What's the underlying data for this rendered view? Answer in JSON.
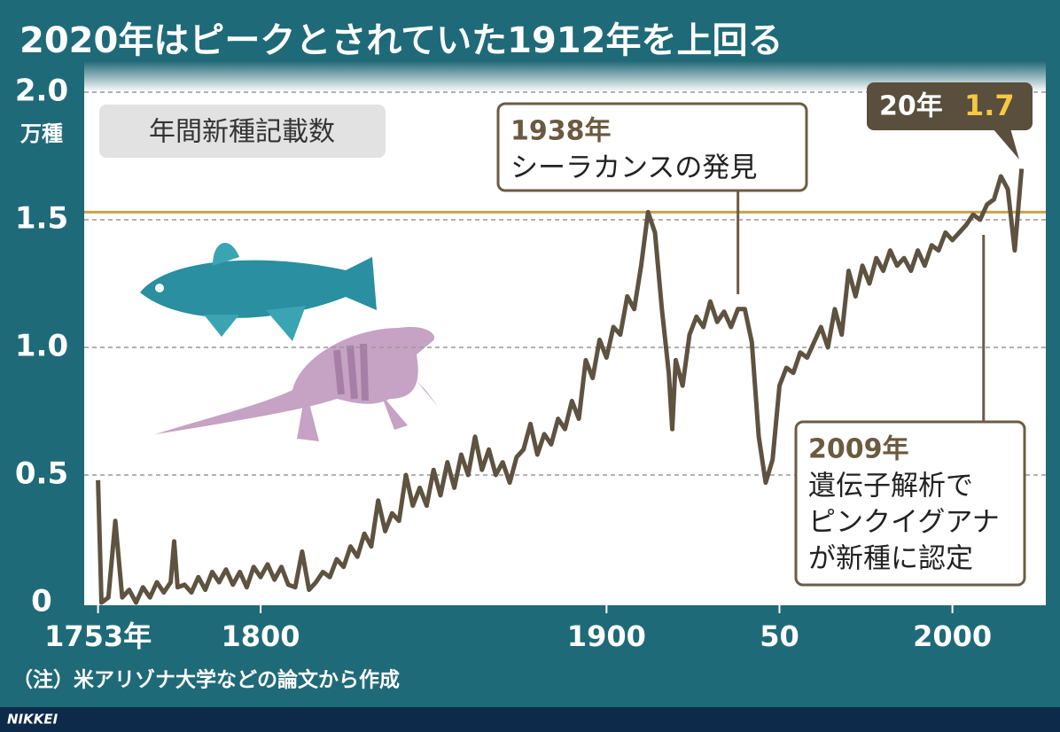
{
  "chart_data": {
    "type": "line",
    "title": "2020年はピークとされていた1912年を上回る",
    "y_unit": "万種",
    "note": "（注）米アリゾナ大学などの論文から作成",
    "source": "NIKKEI",
    "xlim": [
      1749,
      2027
    ],
    "ylim": [
      0,
      2
    ],
    "xticks": [
      {
        "value": 1753,
        "label": "1753年"
      },
      1800,
      1900,
      {
        "value": 1950,
        "label": "50"
      },
      2000
    ],
    "yticks": [
      0,
      0.5,
      {
        "value": 1,
        "label": "1.0"
      },
      1.5,
      {
        "value": 2,
        "label": "2.0"
      }
    ],
    "grid": true,
    "reference_line": {
      "value": 1.53,
      "color": "#c9a24a"
    },
    "series": [
      {
        "name": "年間新種記載数",
        "color": "#5e5240",
        "x": [
          1753,
          1754,
          1756,
          1758,
          1760,
          1762,
          1764,
          1766,
          1768,
          1770,
          1772,
          1774,
          1775,
          1776,
          1778,
          1780,
          1782,
          1784,
          1786,
          1788,
          1790,
          1792,
          1794,
          1796,
          1798,
          1800,
          1802,
          1804,
          1806,
          1808,
          1810,
          1812,
          1814,
          1816,
          1818,
          1820,
          1822,
          1824,
          1826,
          1828,
          1830,
          1832,
          1834,
          1836,
          1838,
          1840,
          1842,
          1844,
          1846,
          1848,
          1850,
          1852,
          1854,
          1856,
          1858,
          1860,
          1862,
          1864,
          1866,
          1868,
          1870,
          1872,
          1874,
          1876,
          1878,
          1880,
          1882,
          1884,
          1886,
          1888,
          1890,
          1892,
          1894,
          1896,
          1898,
          1900,
          1902,
          1904,
          1906,
          1908,
          1910,
          1912,
          1914,
          1916,
          1918,
          1919,
          1920,
          1922,
          1924,
          1926,
          1928,
          1930,
          1932,
          1934,
          1936,
          1938,
          1940,
          1942,
          1944,
          1946,
          1948,
          1950,
          1952,
          1954,
          1956,
          1958,
          1960,
          1962,
          1964,
          1966,
          1968,
          1970,
          1972,
          1974,
          1976,
          1978,
          1980,
          1982,
          1984,
          1986,
          1988,
          1990,
          1992,
          1994,
          1996,
          1998,
          2000,
          2002,
          2004,
          2006,
          2008,
          2010,
          2012,
          2014,
          2016,
          2018,
          2020
        ],
        "values": [
          0.48,
          0.0,
          0.02,
          0.32,
          0.02,
          0.05,
          0.0,
          0.06,
          0.02,
          0.08,
          0.04,
          0.08,
          0.24,
          0.06,
          0.07,
          0.04,
          0.1,
          0.05,
          0.12,
          0.08,
          0.13,
          0.07,
          0.12,
          0.06,
          0.14,
          0.1,
          0.15,
          0.09,
          0.14,
          0.07,
          0.06,
          0.2,
          0.05,
          0.08,
          0.12,
          0.1,
          0.17,
          0.14,
          0.22,
          0.18,
          0.27,
          0.22,
          0.4,
          0.28,
          0.35,
          0.32,
          0.5,
          0.38,
          0.45,
          0.38,
          0.52,
          0.42,
          0.55,
          0.45,
          0.58,
          0.5,
          0.65,
          0.52,
          0.6,
          0.5,
          0.55,
          0.47,
          0.57,
          0.6,
          0.7,
          0.58,
          0.66,
          0.62,
          0.72,
          0.68,
          0.79,
          0.72,
          0.95,
          0.88,
          1.03,
          0.96,
          1.08,
          1.05,
          1.2,
          1.15,
          1.32,
          1.53,
          1.45,
          1.15,
          0.9,
          0.68,
          0.95,
          0.85,
          1.05,
          1.12,
          1.08,
          1.18,
          1.1,
          1.14,
          1.08,
          1.15,
          1.15,
          1.02,
          0.65,
          0.47,
          0.56,
          0.85,
          0.92,
          0.9,
          0.98,
          0.96,
          1.02,
          1.08,
          1.0,
          1.15,
          1.05,
          1.3,
          1.2,
          1.32,
          1.25,
          1.35,
          1.3,
          1.38,
          1.32,
          1.35,
          1.3,
          1.38,
          1.32,
          1.4,
          1.38,
          1.45,
          1.42,
          1.45,
          1.48,
          1.52,
          1.5,
          1.56,
          1.58,
          1.67,
          1.62,
          1.38,
          1.7
        ]
      }
    ],
    "annotations": [
      {
        "x": 1938,
        "title": "1938年",
        "lines": [
          "シーラカンスの発見"
        ]
      },
      {
        "x": 2009,
        "title": "2009年",
        "lines": [
          "遺伝子解析で",
          "ピンクイグアナ",
          "が新種に認定"
        ]
      }
    ],
    "latest": {
      "label": "20年",
      "value": 1.7
    }
  }
}
